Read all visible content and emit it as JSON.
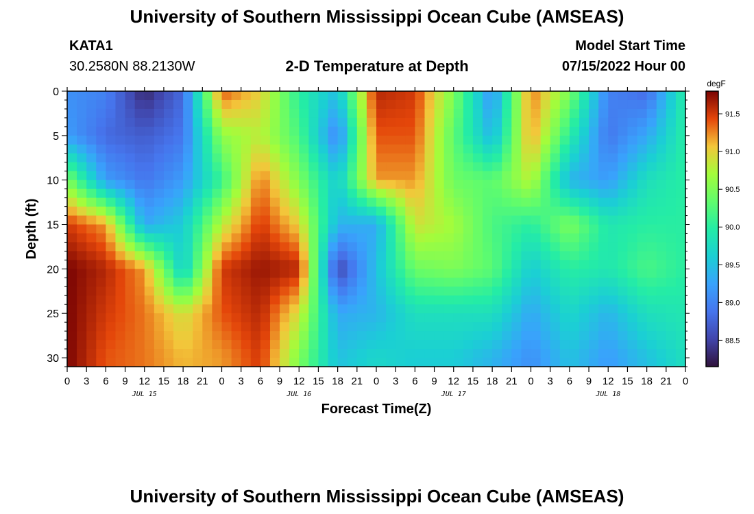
{
  "page_title_top": "University of Southern Mississippi Ocean Cube (AMSEAS)",
  "page_title_bottom": "University of Southern Mississippi Ocean Cube (AMSEAS)",
  "station": {
    "id": "KATA1",
    "coords": "30.2580N  88.2130W"
  },
  "model": {
    "label": "Model Start Time",
    "value": "07/15/2022 Hour 00"
  },
  "chart_data": {
    "type": "heatmap",
    "title": "2-D Temperature at Depth",
    "xlabel": "Forecast Time(Z)",
    "ylabel": "Depth (ft)",
    "y_ticks": [
      "0",
      "5",
      "10",
      "15",
      "20",
      "25",
      "30"
    ],
    "x_ticks": [
      "0",
      "3",
      "6",
      "9",
      "12",
      "15",
      "18",
      "21",
      "0",
      "3",
      "6",
      "9",
      "12",
      "15",
      "18",
      "21",
      "0",
      "3",
      "6",
      "9",
      "12",
      "15",
      "18",
      "21",
      "0",
      "3",
      "6",
      "9",
      "12",
      "15",
      "18",
      "21",
      "0"
    ],
    "day_labels": [
      "JUL 15",
      "JUL 16",
      "JUL 17",
      "JUL 18"
    ],
    "colorbar": {
      "unit": "degF",
      "min": 88.15,
      "max": 91.8,
      "ticks": [
        "88.5",
        "89.0",
        "89.5",
        "90.0",
        "90.5",
        "91.0",
        "91.5"
      ]
    },
    "xlim": [
      0,
      96
    ],
    "ylim": [
      0,
      31
    ],
    "grid_hours": [
      0,
      6,
      12,
      18,
      24,
      30,
      36,
      42,
      48,
      54,
      60,
      66,
      72,
      78,
      84,
      90,
      96
    ],
    "grid_depths": [
      0,
      5,
      10,
      15,
      20,
      25,
      30
    ],
    "grid_values": [
      [
        89.1,
        89.0,
        88.3,
        88.8,
        91.4,
        91.0,
        90.0,
        89.5,
        91.6,
        91.5,
        90.5,
        89.1,
        91.3,
        90.5,
        89.0,
        88.8,
        90.0
      ],
      [
        89.2,
        88.8,
        88.7,
        88.9,
        90.6,
        90.8,
        90.2,
        89.0,
        91.4,
        91.4,
        90.3,
        89.4,
        91.2,
        90.0,
        88.9,
        89.3,
        90.0
      ],
      [
        90.5,
        89.2,
        88.9,
        89.2,
        90.1,
        91.3,
        90.5,
        89.6,
        91.2,
        91.2,
        90.4,
        90.3,
        90.8,
        89.4,
        89.2,
        89.8,
        90.0
      ],
      [
        91.5,
        91.2,
        89.3,
        89.6,
        90.8,
        91.5,
        91.0,
        89.4,
        89.3,
        90.9,
        90.7,
        90.2,
        90.0,
        90.5,
        89.9,
        90.0,
        90.0
      ],
      [
        91.8,
        91.6,
        91.2,
        89.6,
        91.5,
        91.7,
        91.6,
        88.5,
        89.5,
        90.4,
        90.5,
        90.3,
        89.6,
        90.0,
        89.9,
        90.2,
        90.0
      ],
      [
        91.8,
        91.5,
        91.3,
        90.9,
        91.4,
        91.6,
        90.9,
        89.3,
        89.4,
        89.8,
        89.8,
        89.8,
        89.3,
        89.7,
        89.4,
        89.8,
        89.9
      ],
      [
        91.8,
        91.4,
        91.3,
        91.1,
        91.2,
        91.5,
        90.5,
        89.5,
        89.7,
        89.6,
        89.6,
        89.4,
        89.1,
        89.5,
        89.2,
        89.5,
        89.8
      ]
    ]
  }
}
